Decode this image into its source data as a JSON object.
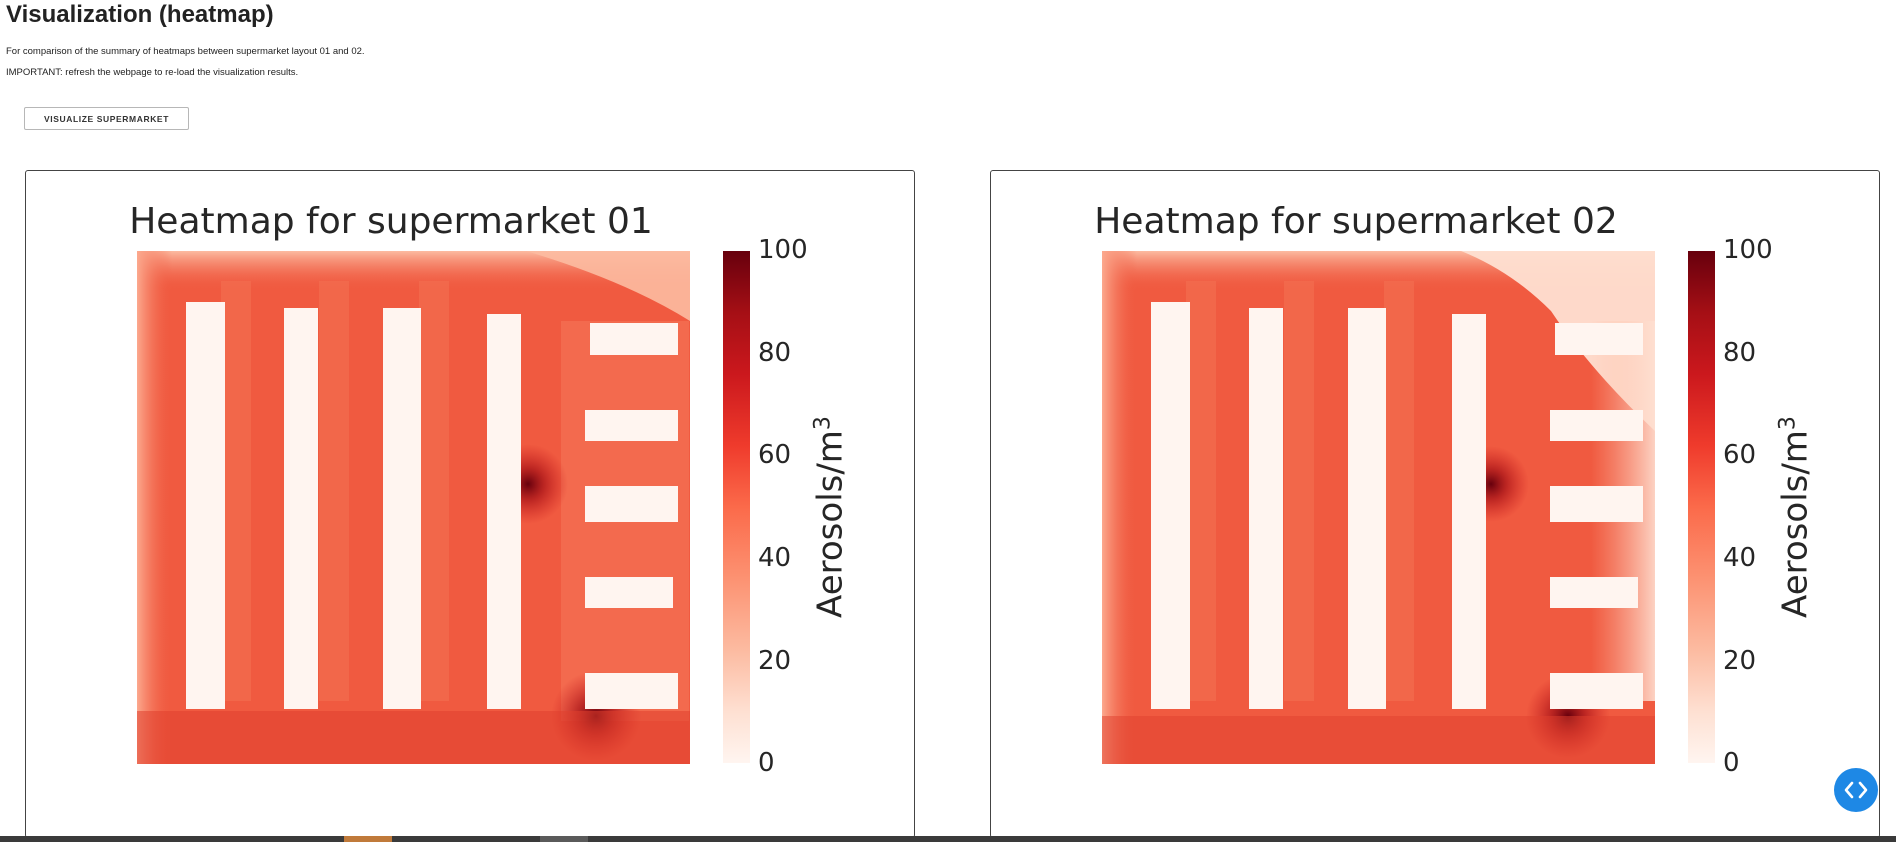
{
  "page": {
    "title": "Visualization (heatmap)",
    "description": "For comparison of the summary of heatmaps between supermarket layout 01 and 02.",
    "important_note": "IMPORTANT: refresh the webpage to re-load the visualization results."
  },
  "button": {
    "label": "VISUALIZE SUPERMARKET"
  },
  "heatmaps": [
    {
      "title": "Heatmap for supermarket 01",
      "colorbar_label": "Aerosols/m",
      "colorbar_label_exponent": "3",
      "colorbar_ticks": [
        "100",
        "80",
        "60",
        "40",
        "20",
        "0"
      ]
    },
    {
      "title": "Heatmap for supermarket 02",
      "colorbar_label": "Aerosols/m",
      "colorbar_label_exponent": "3",
      "colorbar_ticks": [
        "100",
        "80",
        "60",
        "40",
        "20",
        "0"
      ]
    }
  ],
  "chart_data": [
    {
      "type": "heatmap",
      "title": "Heatmap for supermarket 01",
      "colorbar_label": "Aerosols/m3",
      "colorbar_range": [
        0,
        100
      ],
      "colorbar_ticks": [
        0,
        20,
        40,
        60,
        80,
        100
      ],
      "colormap": "Reds"
    },
    {
      "type": "heatmap",
      "title": "Heatmap for supermarket 02",
      "colorbar_label": "Aerosols/m3",
      "colorbar_range": [
        0,
        100
      ],
      "colorbar_ticks": [
        0,
        20,
        40,
        60,
        80,
        100
      ],
      "colormap": "Reds"
    }
  ],
  "colors": {
    "heat_base": "#f05a40",
    "heat_light": "#fca98e",
    "heat_dark": "#67000d",
    "shelf": "#fff5f0",
    "fab": "#1e88e5"
  },
  "icons": {
    "fab": "code-brackets-icon"
  }
}
